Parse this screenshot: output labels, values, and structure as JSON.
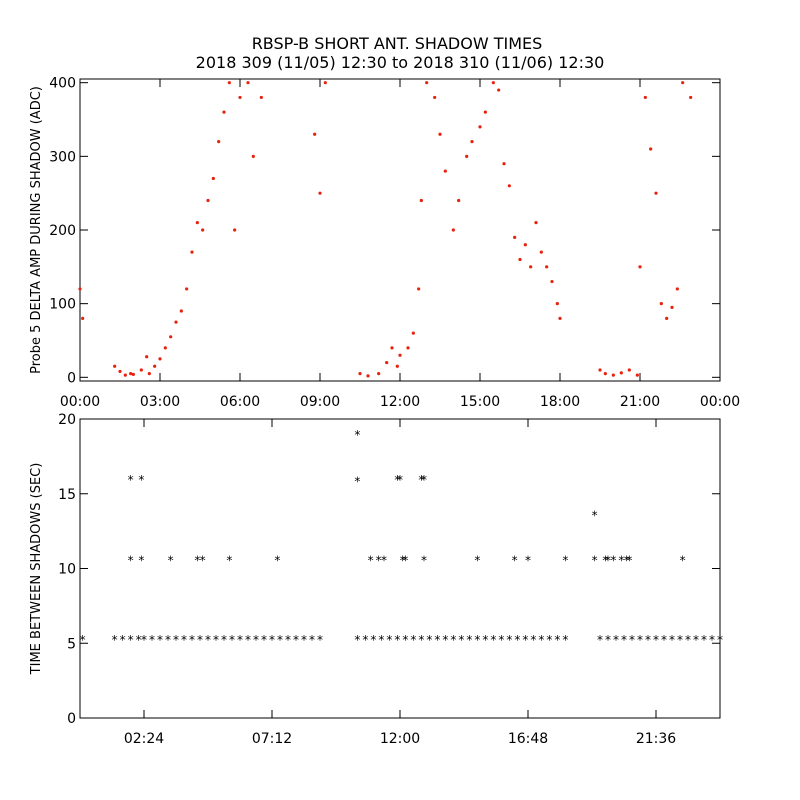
{
  "title": {
    "line1": "RBSP-B SHORT ANT. SHADOW TIMES",
    "line2": "2018 309 (11/05) 12:30 to 2018 310 (11/06) 12:30"
  },
  "colors": {
    "amp": "#e8210e",
    "gap": "#000000",
    "axis": "#000000"
  },
  "chart_data": [
    {
      "type": "scatter",
      "ylabel": "Probe 5 DELTA AMP DURING SHADOW (ADC)",
      "xlim": [
        0,
        24
      ],
      "ylim": [
        -5,
        405
      ],
      "x_ticks": [
        0,
        3,
        6,
        9,
        12,
        15,
        18,
        21,
        24
      ],
      "x_tick_labels": [
        "00:00",
        "03:00",
        "06:00",
        "09:00",
        "12:00",
        "15:00",
        "18:00",
        "21:00",
        "00:00"
      ],
      "y_ticks": [
        0,
        100,
        200,
        300,
        400
      ],
      "y_tick_labels": [
        "0",
        "100",
        "200",
        "300",
        "400"
      ],
      "series": [
        {
          "color": "#e8210e",
          "x": [
            0.0,
            0.1,
            1.3,
            1.5,
            1.7,
            1.9,
            2.0,
            2.3,
            2.5,
            2.6,
            2.8,
            3.0,
            3.2,
            3.4,
            3.6,
            3.8,
            4.0,
            4.2,
            4.4,
            4.6,
            4.8,
            5.0,
            5.2,
            5.4,
            5.6,
            5.8,
            6.0,
            6.3,
            6.5,
            6.8,
            8.8,
            9.0,
            9.2,
            10.5,
            10.8,
            11.2,
            11.5,
            11.7,
            11.9,
            12.0,
            12.3,
            12.5,
            12.7,
            12.8,
            13.0,
            13.3,
            13.5,
            13.7,
            14.0,
            14.2,
            14.5,
            14.7,
            15.0,
            15.2,
            15.5,
            15.7,
            15.9,
            16.1,
            16.3,
            16.5,
            16.7,
            16.9,
            17.1,
            17.3,
            17.5,
            17.7,
            17.9,
            18.0,
            19.5,
            19.7,
            20.0,
            20.3,
            20.6,
            20.9,
            21.0,
            21.2,
            21.4,
            21.6,
            21.8,
            22.0,
            22.2,
            22.4,
            22.6,
            22.9
          ],
          "y": [
            120,
            80,
            15,
            8,
            3,
            5,
            4,
            10,
            28,
            5,
            15,
            25,
            40,
            55,
            75,
            90,
            120,
            170,
            210,
            200,
            240,
            270,
            320,
            360,
            400,
            200,
            380,
            400,
            300,
            380,
            330,
            250,
            400,
            5,
            2,
            5,
            20,
            40,
            15,
            30,
            40,
            60,
            120,
            240,
            400,
            380,
            330,
            280,
            200,
            240,
            300,
            320,
            340,
            360,
            400,
            390,
            290,
            260,
            190,
            160,
            180,
            150,
            210,
            170,
            150,
            130,
            100,
            80,
            10,
            5,
            3,
            6,
            10,
            3,
            150,
            380,
            310,
            250,
            100,
            80,
            95,
            120,
            400,
            380
          ],
          "marker": "dot"
        }
      ]
    },
    {
      "type": "scatter",
      "ylabel": "TIME BETWEEN SHADOWS (SEC)",
      "xlim": [
        0,
        24
      ],
      "ylim": [
        0,
        20
      ],
      "x_ticks": [
        2.4,
        7.2,
        12.0,
        16.8,
        21.6
      ],
      "x_tick_labels": [
        "02:24",
        "07:12",
        "12:00",
        "16:48",
        "21:36"
      ],
      "y_ticks": [
        0,
        5,
        10,
        15,
        20
      ],
      "y_tick_labels": [
        "0",
        "5",
        "10",
        "15",
        "20"
      ],
      "series": [
        {
          "color": "#000000",
          "marker": "asterisk",
          "x": [
            0.1,
            1.3,
            1.6,
            1.9,
            2.2,
            2.4,
            2.7,
            3.0,
            3.3,
            3.6,
            3.9,
            4.2,
            4.5,
            4.8,
            5.1,
            5.4,
            5.7,
            6.0,
            6.3,
            6.6,
            6.9,
            7.2,
            7.5,
            7.8,
            8.1,
            8.4,
            8.7,
            9.0,
            10.4,
            10.7,
            11.0,
            11.3,
            11.6,
            11.9,
            12.2,
            12.5,
            12.8,
            13.1,
            13.4,
            13.7,
            14.0,
            14.3,
            14.6,
            14.9,
            15.2,
            15.5,
            15.8,
            16.1,
            16.4,
            16.7,
            17.0,
            17.3,
            17.6,
            17.9,
            18.2,
            19.5,
            19.8,
            20.1,
            20.4,
            20.7,
            21.0,
            21.3,
            21.6,
            21.9,
            22.2,
            22.5,
            22.8,
            23.1,
            23.4,
            23.7,
            24.0,
            1.9,
            2.3,
            1.9,
            2.3,
            3.4,
            4.4,
            4.6,
            5.6,
            7.4,
            10.4,
            10.4,
            10.9,
            11.2,
            11.4,
            11.9,
            12.0,
            12.2,
            12.1,
            12.8,
            12.9,
            12.9,
            14.9,
            16.3,
            16.8,
            18.2,
            19.3,
            19.3,
            19.7,
            19.8,
            20.0,
            20.3,
            20.5,
            20.6,
            22.6
          ],
          "y": [
            5.3,
            5.3,
            5.3,
            5.3,
            5.3,
            5.3,
            5.3,
            5.3,
            5.3,
            5.3,
            5.3,
            5.3,
            5.3,
            5.3,
            5.3,
            5.3,
            5.3,
            5.3,
            5.3,
            5.3,
            5.3,
            5.3,
            5.3,
            5.3,
            5.3,
            5.3,
            5.3,
            5.3,
            5.3,
            5.3,
            5.3,
            5.3,
            5.3,
            5.3,
            5.3,
            5.3,
            5.3,
            5.3,
            5.3,
            5.3,
            5.3,
            5.3,
            5.3,
            5.3,
            5.3,
            5.3,
            5.3,
            5.3,
            5.3,
            5.3,
            5.3,
            5.3,
            5.3,
            5.3,
            5.3,
            5.3,
            5.3,
            5.3,
            5.3,
            5.3,
            5.3,
            5.3,
            5.3,
            5.3,
            5.3,
            5.3,
            5.3,
            5.3,
            5.3,
            5.3,
            5.3,
            16.0,
            16.0,
            10.6,
            10.6,
            10.6,
            10.6,
            10.6,
            10.6,
            10.6,
            19.0,
            15.9,
            10.6,
            10.6,
            10.6,
            16.0,
            16.0,
            10.6,
            10.6,
            16.0,
            16.0,
            10.6,
            10.6,
            10.6,
            10.6,
            10.6,
            13.6,
            10.6,
            10.6,
            10.6,
            10.6,
            10.6,
            10.6,
            10.6,
            10.6
          ]
        }
      ]
    }
  ]
}
